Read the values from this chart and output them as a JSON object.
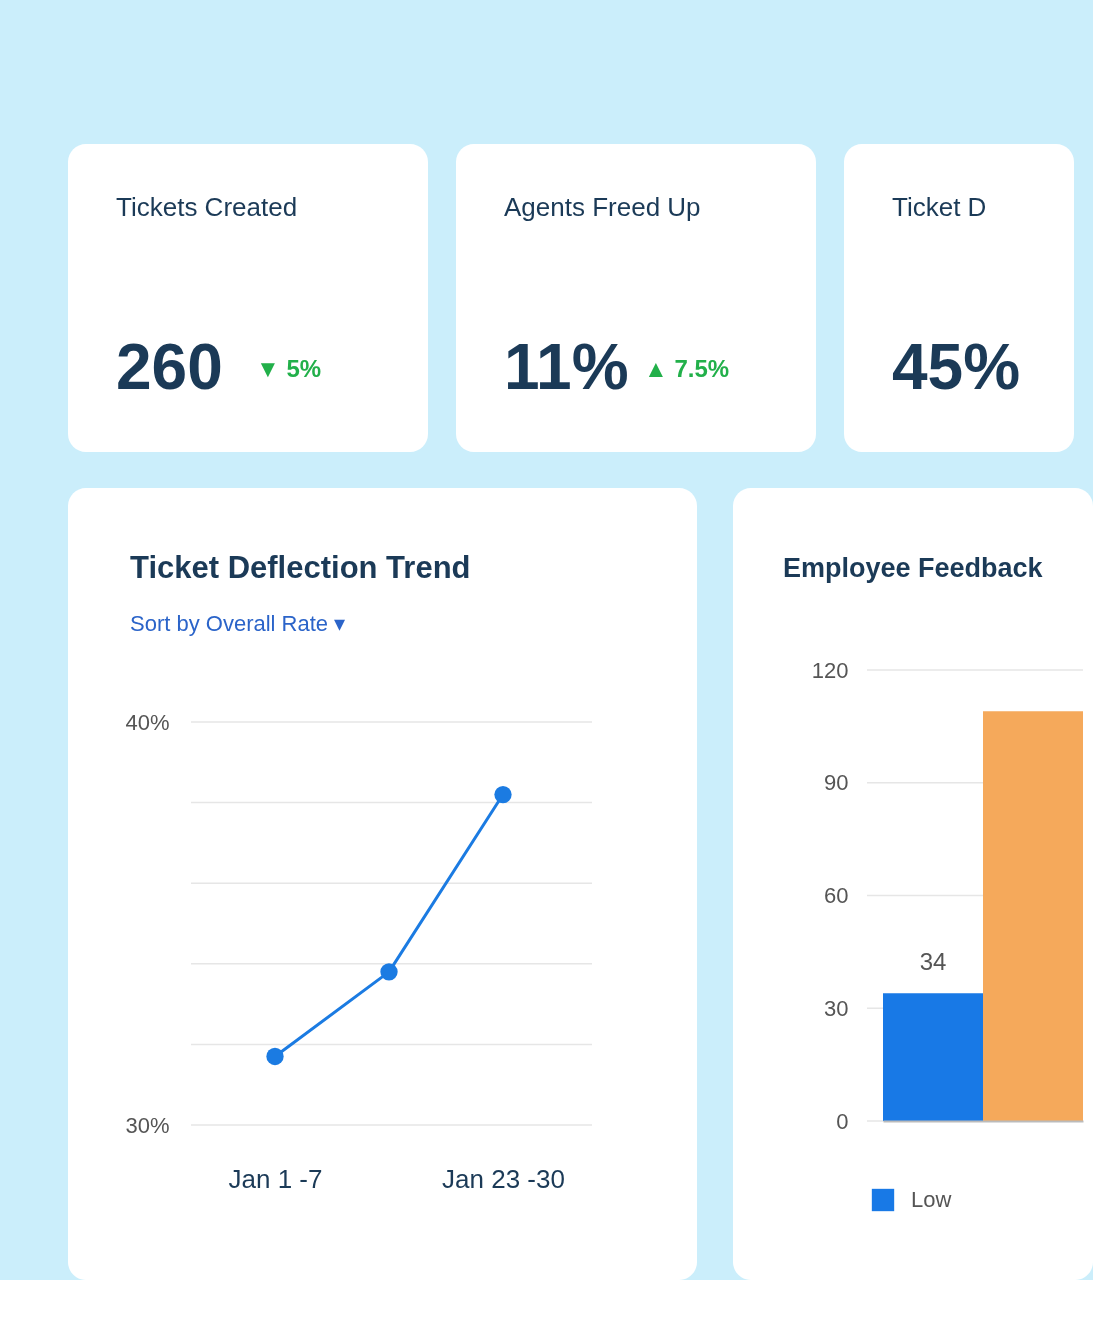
{
  "chart_data": [
    {
      "type": "other",
      "title": "Tickets Created",
      "annotations": [
        "260",
        "▼ 5%"
      ]
    },
    {
      "type": "other",
      "title": "Agents Freed Up",
      "annotations": [
        "11%",
        "▲ 7.5%"
      ]
    },
    {
      "type": "other",
      "title": "Ticket D",
      "annotations": [
        "45%"
      ]
    },
    {
      "type": "line",
      "title": "Ticket Deflection Trend",
      "subtitle": "Sort by  Overall Rate ▾",
      "categories": [
        "Jan 1 -7",
        null,
        "Jan 23 -30"
      ],
      "series": [
        {
          "color": "#1b7be2",
          "values": [
            31.7,
            33.8,
            38.2
          ]
        }
      ],
      "ylim": [
        30,
        40
      ],
      "yticks": [
        {
          "value": 30,
          "label": "30%"
        },
        {
          "value": 32,
          "label": null
        },
        {
          "value": 34,
          "label": null
        },
        {
          "value": 36,
          "label": null
        },
        {
          "value": 38,
          "label": null
        },
        {
          "value": 40,
          "label": "40%"
        }
      ],
      "grid": "y",
      "marker": "circle",
      "line_style": "solid"
    },
    {
      "type": "bar",
      "title": "Employee Feedback",
      "categories": [
        null
      ],
      "series": [
        {
          "name": "Low",
          "color": "#1879e6",
          "values": [
            34
          ],
          "value_labels": [
            "34"
          ]
        },
        {
          "color": "#f5a95b",
          "values": [
            109
          ]
        }
      ],
      "ylim": [
        0,
        120
      ],
      "yticks": [
        0,
        30,
        60,
        90,
        120
      ],
      "grid": "y",
      "legend": "bottom"
    }
  ]
}
